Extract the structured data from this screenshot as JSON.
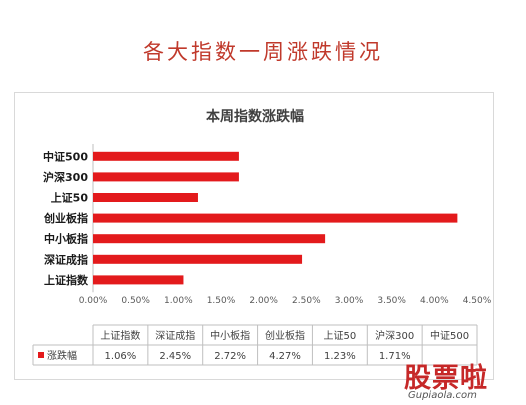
{
  "page": {
    "title": "各大指数一周涨跌情况"
  },
  "chart_data": {
    "type": "bar",
    "orientation": "horizontal",
    "title": "本周指数涨跌幅",
    "categories": [
      "中证500",
      "沪深300",
      "上证50",
      "创业板指",
      "中小板指",
      "深证成指",
      "上证指数"
    ],
    "series": [
      {
        "name": "涨跌幅",
        "values": [
          1.71,
          1.71,
          1.23,
          4.27,
          2.72,
          2.45,
          1.06
        ]
      }
    ],
    "x_ticks": [
      "0.00%",
      "0.50%",
      "1.00%",
      "1.50%",
      "2.00%",
      "2.50%",
      "3.00%",
      "3.50%",
      "4.00%",
      "4.50%"
    ],
    "xlim": [
      0,
      4.5
    ],
    "grid": false,
    "legend": "table-bottom",
    "bar_color": "#e31a1c",
    "data_table": {
      "headers": [
        "上证指数",
        "深证成指",
        "中小板指",
        "创业板指",
        "上证50",
        "沪深300",
        "中证500"
      ],
      "row_label": "涨跌幅",
      "values": [
        "1.06%",
        "2.45%",
        "2.72%",
        "4.27%",
        "1.23%",
        "1.71%",
        ""
      ]
    }
  },
  "watermark": {
    "main": "股票啦",
    "sub": "Gupiaola.com"
  }
}
